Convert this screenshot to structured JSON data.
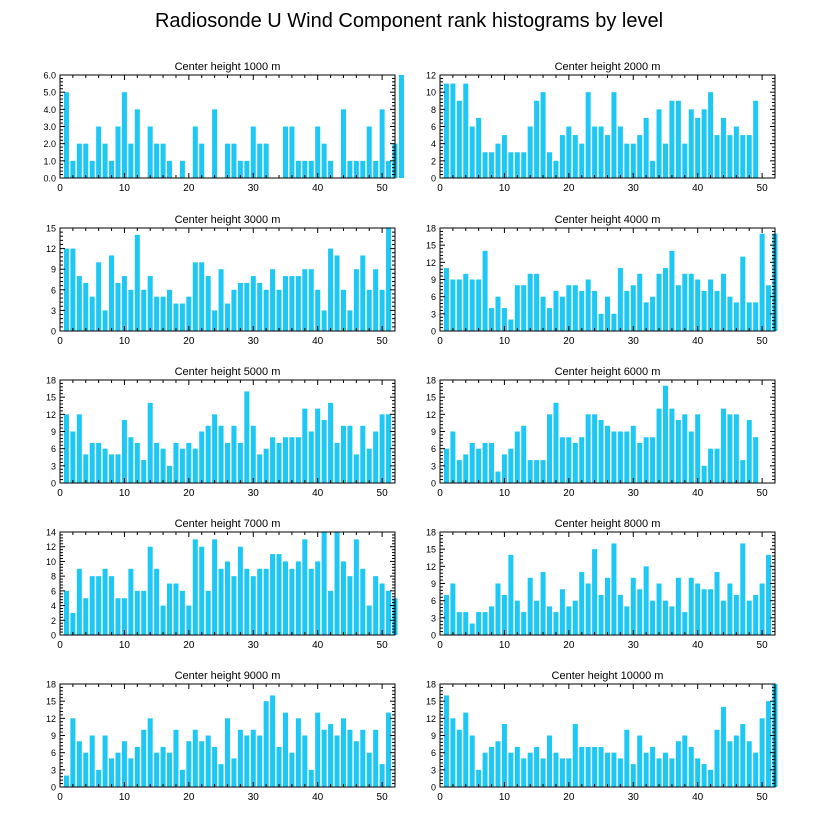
{
  "title": "Radiosonde U Wind Component rank histograms by level",
  "colors": {
    "bar": "#1ec8f5",
    "axis": "#000000",
    "background": "#ffffff"
  },
  "chart_data": [
    {
      "type": "bar",
      "title": "Center height 1000 m",
      "xlim": [
        0,
        52
      ],
      "ylim": [
        0,
        6
      ],
      "xticks": [
        0,
        10,
        20,
        30,
        40,
        50
      ],
      "yticks": [
        0,
        1,
        2,
        3,
        4,
        5,
        6
      ],
      "ytick_labels": [
        "0.0",
        "1.0",
        "2.0",
        "3.0",
        "4.0",
        "5.0",
        "6.0"
      ],
      "values": [
        5,
        1,
        2,
        2,
        1,
        3,
        2,
        1,
        3,
        5,
        2,
        4,
        0,
        3,
        2,
        2,
        1,
        0,
        1,
        0,
        3,
        2,
        0,
        4,
        0,
        2,
        2,
        1,
        1,
        3,
        2,
        2,
        0,
        0,
        3,
        3,
        1,
        1,
        1,
        3,
        2,
        1,
        0,
        4,
        1,
        1,
        1,
        3,
        1,
        4,
        1,
        2,
        6
      ]
    },
    {
      "type": "bar",
      "title": "Center height 2000 m",
      "xlim": [
        0,
        52
      ],
      "ylim": [
        0,
        12
      ],
      "xticks": [
        0,
        10,
        20,
        30,
        40,
        50
      ],
      "yticks": [
        0,
        2,
        4,
        6,
        8,
        10,
        12
      ],
      "ytick_labels": [
        "0",
        "2",
        "4",
        "6",
        "8",
        "10",
        "12"
      ],
      "values": [
        11,
        11,
        9,
        11,
        6,
        7,
        3,
        3,
        4,
        5,
        3,
        3,
        3,
        6,
        9,
        10,
        3,
        2,
        5,
        6,
        5,
        4,
        10,
        6,
        6,
        5,
        10,
        6,
        4,
        4,
        5,
        7,
        2,
        8,
        4,
        9,
        9,
        4,
        8,
        7,
        8,
        10,
        5,
        7,
        5,
        6,
        5,
        5,
        9
      ]
    },
    {
      "type": "bar",
      "title": "Center height 3000 m",
      "xlim": [
        0,
        52
      ],
      "ylim": [
        0,
        15
      ],
      "xticks": [
        0,
        10,
        20,
        30,
        40,
        50
      ],
      "yticks": [
        0,
        3,
        6,
        9,
        12,
        15
      ],
      "ytick_labels": [
        "0",
        "3",
        "6",
        "9",
        "12",
        "15"
      ],
      "values": [
        12,
        12,
        8,
        7,
        5,
        10,
        3,
        11,
        7,
        8,
        6,
        14,
        6,
        8,
        5,
        5,
        6,
        4,
        4,
        5,
        10,
        10,
        8,
        3,
        9,
        4,
        6,
        7,
        7,
        8,
        7,
        6,
        9,
        6,
        8,
        8,
        8,
        9,
        9,
        6,
        3,
        12,
        11,
        6,
        3,
        9,
        11,
        6,
        9,
        6,
        15
      ]
    },
    {
      "type": "bar",
      "title": "Center height 4000 m",
      "xlim": [
        0,
        52
      ],
      "ylim": [
        0,
        18
      ],
      "xticks": [
        0,
        10,
        20,
        30,
        40,
        50
      ],
      "yticks": [
        0,
        3,
        6,
        9,
        12,
        15,
        18
      ],
      "ytick_labels": [
        "0",
        "3",
        "6",
        "9",
        "12",
        "15",
        "18"
      ],
      "values": [
        11,
        9,
        9,
        10,
        9,
        9,
        14,
        4,
        6,
        4,
        2,
        8,
        8,
        10,
        10,
        6,
        4,
        7,
        6,
        8,
        8,
        7,
        9,
        7,
        3,
        6,
        3,
        11,
        7,
        8,
        10,
        5,
        6,
        10,
        11,
        14,
        8,
        10,
        10,
        9,
        7,
        9,
        7,
        10,
        6,
        5,
        13,
        5,
        5,
        17,
        8,
        17
      ]
    },
    {
      "type": "bar",
      "title": "Center height 5000 m",
      "xlim": [
        0,
        52
      ],
      "ylim": [
        0,
        18
      ],
      "xticks": [
        0,
        10,
        20,
        30,
        40,
        50
      ],
      "yticks": [
        0,
        3,
        6,
        9,
        12,
        15,
        18
      ],
      "ytick_labels": [
        "0",
        "3",
        "6",
        "9",
        "12",
        "15",
        "18"
      ],
      "values": [
        12,
        9,
        12,
        5,
        7,
        7,
        6,
        5,
        5,
        11,
        8,
        7,
        4,
        14,
        7,
        6,
        3,
        7,
        6,
        7,
        6,
        9,
        10,
        12,
        10,
        7,
        10,
        7,
        16,
        10,
        5,
        6,
        8,
        7,
        8,
        8,
        8,
        13,
        9,
        13,
        11,
        14,
        7,
        10,
        10,
        5,
        10,
        6,
        9,
        12,
        12
      ]
    },
    {
      "type": "bar",
      "title": "Center height 6000 m",
      "xlim": [
        0,
        52
      ],
      "ylim": [
        0,
        18
      ],
      "xticks": [
        0,
        10,
        20,
        30,
        40,
        50
      ],
      "yticks": [
        0,
        3,
        6,
        9,
        12,
        15,
        18
      ],
      "ytick_labels": [
        "0",
        "3",
        "6",
        "9",
        "12",
        "15",
        "18"
      ],
      "values": [
        6,
        9,
        4,
        5,
        7,
        6,
        7,
        7,
        2,
        5,
        6,
        9,
        10,
        4,
        4,
        4,
        12,
        14,
        8,
        8,
        7,
        8,
        12,
        12,
        11,
        10,
        9,
        9,
        9,
        10,
        7,
        8,
        8,
        13,
        17,
        13,
        11,
        12,
        9,
        12,
        3,
        6,
        6,
        13,
        12,
        12,
        4,
        11,
        8
      ]
    },
    {
      "type": "bar",
      "title": "Center height 7000 m",
      "xlim": [
        0,
        52
      ],
      "ylim": [
        0,
        14
      ],
      "xticks": [
        0,
        10,
        20,
        30,
        40,
        50
      ],
      "yticks": [
        0,
        2,
        4,
        6,
        8,
        10,
        12,
        14
      ],
      "ytick_labels": [
        "0",
        "2",
        "4",
        "6",
        "8",
        "10",
        "12",
        "14"
      ],
      "values": [
        6,
        3,
        9,
        5,
        8,
        8,
        9,
        8,
        5,
        5,
        9,
        6,
        6,
        12,
        9,
        4,
        7,
        7,
        6,
        4,
        13,
        12,
        6,
        13,
        9,
        10,
        8,
        12,
        9,
        8,
        9,
        9,
        11,
        11,
        10,
        9,
        10,
        13,
        9,
        10,
        14,
        6,
        14,
        10,
        8,
        13,
        9,
        4,
        8,
        7,
        6,
        5
      ]
    },
    {
      "type": "bar",
      "title": "Center height 8000 m",
      "xlim": [
        0,
        52
      ],
      "ylim": [
        0,
        18
      ],
      "xticks": [
        0,
        10,
        20,
        30,
        40,
        50
      ],
      "yticks": [
        0,
        3,
        6,
        9,
        12,
        15,
        18
      ],
      "ytick_labels": [
        "0",
        "3",
        "6",
        "9",
        "12",
        "15",
        "18"
      ],
      "values": [
        7,
        9,
        4,
        4,
        2,
        4,
        4,
        5,
        9,
        7,
        14,
        6,
        4,
        10,
        6,
        11,
        5,
        4,
        8,
        5,
        6,
        11,
        9,
        15,
        7,
        10,
        16,
        7,
        5,
        10,
        8,
        12,
        6,
        9,
        6,
        5,
        10,
        4,
        10,
        9,
        8,
        8,
        11,
        6,
        9,
        7,
        16,
        6,
        7,
        9,
        14
      ]
    },
    {
      "type": "bar",
      "title": "Center height 9000 m",
      "xlim": [
        0,
        52
      ],
      "ylim": [
        0,
        18
      ],
      "xticks": [
        0,
        10,
        20,
        30,
        40,
        50
      ],
      "yticks": [
        0,
        3,
        6,
        9,
        12,
        15,
        18
      ],
      "ytick_labels": [
        "0",
        "3",
        "6",
        "9",
        "12",
        "15",
        "18"
      ],
      "values": [
        2,
        12,
        8,
        6,
        9,
        3,
        9,
        5,
        6,
        8,
        5,
        7,
        10,
        12,
        6,
        7,
        6,
        10,
        3,
        8,
        10,
        8,
        9,
        7,
        4,
        12,
        5,
        10,
        9,
        10,
        9,
        15,
        16,
        7,
        13,
        6,
        12,
        9,
        3,
        13,
        10,
        11,
        9,
        12,
        10,
        8,
        10,
        6,
        10,
        4,
        13
      ]
    },
    {
      "type": "bar",
      "title": "Center height 10000 m",
      "xlim": [
        0,
        52
      ],
      "ylim": [
        0,
        18
      ],
      "xticks": [
        0,
        10,
        20,
        30,
        40,
        50
      ],
      "yticks": [
        0,
        3,
        6,
        9,
        12,
        15,
        18
      ],
      "ytick_labels": [
        "0",
        "3",
        "6",
        "9",
        "12",
        "15",
        "18"
      ],
      "values": [
        16,
        12,
        10,
        13,
        9,
        3,
        6,
        7,
        8,
        11,
        6,
        7,
        5,
        6,
        7,
        5,
        9,
        6,
        5,
        5,
        11,
        7,
        7,
        7,
        7,
        6,
        6,
        5,
        10,
        4,
        9,
        6,
        7,
        5,
        6,
        5,
        8,
        9,
        7,
        5,
        4,
        3,
        10,
        14,
        8,
        9,
        11,
        8,
        6,
        12,
        15,
        18
      ]
    }
  ]
}
